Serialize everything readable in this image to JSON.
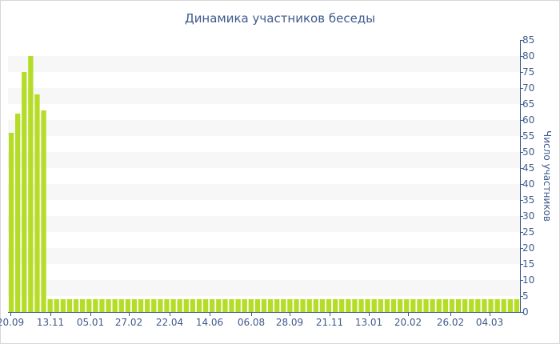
{
  "chart_data": {
    "type": "bar",
    "title": "Динамика участников беседы",
    "ylabel": "Число участников",
    "xlabel": "",
    "ylim": [
      0,
      85
    ],
    "yticks": [
      0,
      5,
      10,
      15,
      20,
      25,
      30,
      35,
      40,
      45,
      50,
      55,
      60,
      65,
      70,
      75,
      80,
      85
    ],
    "grid": "alternating horizontal bands",
    "legend": "none",
    "bar_color": "#b5dd28",
    "band_color": "#f7f7f7",
    "axis_color": "#3e5a8c",
    "xtick_labels": [
      "20.09",
      "13.11",
      "05.01",
      "27.02",
      "22.04",
      "14.06",
      "06.08",
      "28.09",
      "21.11",
      "13.01",
      "20.02",
      "26.02",
      "04.03"
    ],
    "values": [
      56,
      62,
      75,
      80,
      68,
      63,
      4,
      4,
      4,
      4,
      4,
      4,
      4,
      4,
      4,
      4,
      4,
      4,
      4,
      4,
      4,
      4,
      4,
      4,
      4,
      4,
      4,
      4,
      4,
      4,
      4,
      4,
      4,
      4,
      4,
      4,
      4,
      4,
      4,
      4,
      4,
      4,
      4,
      4,
      4,
      4,
      4,
      4,
      4,
      4,
      4,
      4,
      4,
      4,
      4,
      4,
      4,
      4,
      4,
      4,
      4,
      4,
      4,
      4,
      4,
      4,
      4,
      4,
      4,
      4,
      4,
      4,
      4,
      4,
      4,
      4,
      4,
      4,
      4
    ]
  }
}
